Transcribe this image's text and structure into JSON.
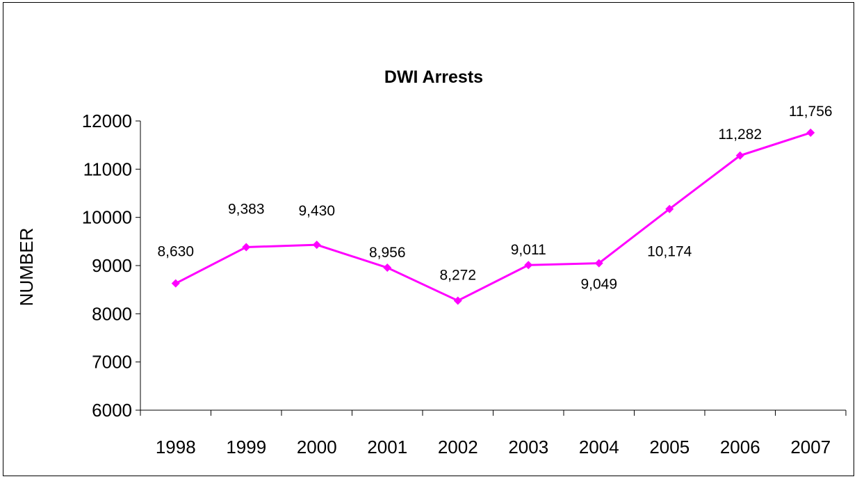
{
  "chart_data": {
    "type": "line",
    "title": "DWI Arrests",
    "xlabel": "",
    "ylabel": "NUMBER",
    "ylim": [
      6000,
      12000
    ],
    "ytick_step": 1000,
    "categories": [
      "1998",
      "1999",
      "2000",
      "2001",
      "2002",
      "2003",
      "2004",
      "2005",
      "2006",
      "2007"
    ],
    "series": [
      {
        "values": [
          8630,
          9383,
          9430,
          8956,
          8272,
          9011,
          9049,
          10174,
          11282,
          11756
        ],
        "labels": [
          "8,630",
          "9,383",
          "9,430",
          "8,956",
          "8,272",
          "9,011",
          "9,049",
          "10,174",
          "11,282",
          "11,756"
        ],
        "color": "#FF00FF"
      }
    ],
    "grid": false,
    "legend": "none"
  }
}
